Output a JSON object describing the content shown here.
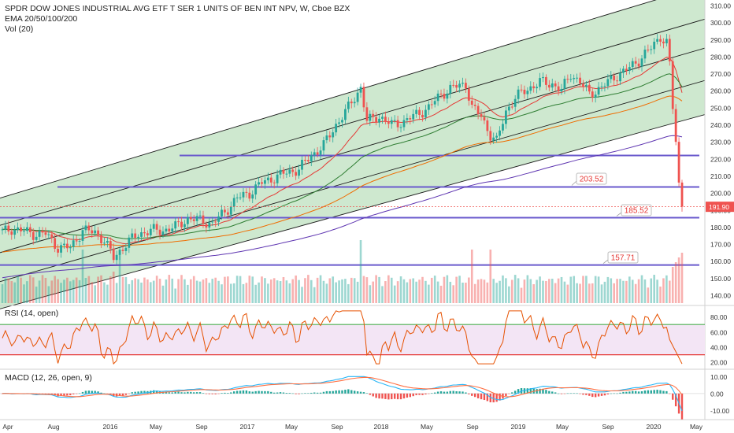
{
  "header": {
    "title": "SPDR DOW JONES INDUSTRIAL AVG ETF T SER 1 UNITS OF BEN INT NPV, W, Cboe BZX",
    "ema_label": "EMA 20/50/100/200",
    "vol_label": "Vol (20)"
  },
  "rsi_label": "RSI (14, open)",
  "macd_label": "MACD (12, 26, open, 9)",
  "colors": {
    "up": "#26a69a",
    "down": "#ef5350",
    "channel_fill": "#a5d6a7",
    "level_line": "#6a5acd",
    "ema20": "#e53935",
    "ema50": "#2e7d32",
    "ema100": "#ef6c00",
    "ema200": "#5e35b1",
    "rsi_fill": "#f3e5f5",
    "rsi_line": "#e65100",
    "macd_line": "#29b6f6",
    "signal_line": "#ff7043"
  },
  "chart_data": {
    "type": "candlestick",
    "interval": "weekly",
    "price_axis": {
      "ticks": [
        "310.00",
        "300.00",
        "290.00",
        "280.00",
        "270.00",
        "260.00",
        "250.00",
        "240.00",
        "230.00",
        "220.00",
        "210.00",
        "200.00",
        "190.00",
        "180.00",
        "170.00",
        "160.00",
        "150.00",
        "140.00"
      ],
      "range": [
        135,
        312
      ]
    },
    "x_labels": [
      "Apr",
      "Aug",
      "2016",
      "May",
      "Sep",
      "2017",
      "May",
      "Sep",
      "2018",
      "May",
      "Sep",
      "2019",
      "May",
      "Sep",
      "2020",
      "May"
    ],
    "close_series": [
      {
        "t": 0,
        "v": 177
      },
      {
        "t": 3,
        "v": 179
      },
      {
        "t": 6,
        "v": 178
      },
      {
        "t": 10,
        "v": 176
      },
      {
        "t": 14,
        "v": 176
      },
      {
        "t": 18,
        "v": 168
      },
      {
        "t": 22,
        "v": 168
      },
      {
        "t": 26,
        "v": 178
      },
      {
        "t": 30,
        "v": 177
      },
      {
        "t": 33,
        "v": 172
      },
      {
        "t": 36,
        "v": 162
      },
      {
        "t": 40,
        "v": 170
      },
      {
        "t": 44,
        "v": 176
      },
      {
        "t": 48,
        "v": 178
      },
      {
        "t": 52,
        "v": 178
      },
      {
        "t": 56,
        "v": 180
      },
      {
        "t": 60,
        "v": 185
      },
      {
        "t": 64,
        "v": 184
      },
      {
        "t": 68,
        "v": 182
      },
      {
        "t": 72,
        "v": 189
      },
      {
        "t": 76,
        "v": 197
      },
      {
        "t": 80,
        "v": 200
      },
      {
        "t": 84,
        "v": 206
      },
      {
        "t": 88,
        "v": 209
      },
      {
        "t": 92,
        "v": 212
      },
      {
        "t": 96,
        "v": 214
      },
      {
        "t": 100,
        "v": 222
      },
      {
        "t": 104,
        "v": 228
      },
      {
        "t": 108,
        "v": 240
      },
      {
        "t": 112,
        "v": 250
      },
      {
        "t": 116,
        "v": 262
      },
      {
        "t": 118,
        "v": 242
      },
      {
        "t": 122,
        "v": 245
      },
      {
        "t": 126,
        "v": 240
      },
      {
        "t": 130,
        "v": 242
      },
      {
        "t": 134,
        "v": 246
      },
      {
        "t": 138,
        "v": 250
      },
      {
        "t": 142,
        "v": 258
      },
      {
        "t": 146,
        "v": 262
      },
      {
        "t": 150,
        "v": 264
      },
      {
        "t": 152,
        "v": 250
      },
      {
        "t": 155,
        "v": 245
      },
      {
        "t": 158,
        "v": 234
      },
      {
        "t": 160,
        "v": 230
      },
      {
        "t": 163,
        "v": 248
      },
      {
        "t": 166,
        "v": 256
      },
      {
        "t": 170,
        "v": 261
      },
      {
        "t": 174,
        "v": 265
      },
      {
        "t": 178,
        "v": 264
      },
      {
        "t": 181,
        "v": 260
      },
      {
        "t": 184,
        "v": 270
      },
      {
        "t": 187,
        "v": 265
      },
      {
        "t": 190,
        "v": 258
      },
      {
        "t": 194,
        "v": 262
      },
      {
        "t": 198,
        "v": 268
      },
      {
        "t": 202,
        "v": 272
      },
      {
        "t": 206,
        "v": 278
      },
      {
        "t": 210,
        "v": 285
      },
      {
        "t": 213,
        "v": 292
      },
      {
        "t": 215,
        "v": 288
      },
      {
        "t": 216,
        "v": 275
      },
      {
        "t": 217,
        "v": 250
      },
      {
        "t": 218,
        "v": 230
      },
      {
        "t": 219,
        "v": 205
      },
      {
        "t": 220,
        "v": 192
      }
    ],
    "last_price": "191.90",
    "levels": [
      {
        "value": 222,
        "label": ""
      },
      {
        "value": 203.52,
        "label": "203.52"
      },
      {
        "value": 185.52,
        "label": "185.52"
      },
      {
        "value": 157.71,
        "label": "157.71"
      }
    ],
    "rsi_axis": {
      "ticks": [
        "80.00",
        "60.00",
        "40.00",
        "20.00"
      ],
      "range": [
        15,
        90
      ],
      "bands": [
        70,
        30
      ]
    },
    "macd_axis": {
      "ticks": [
        "10.00",
        "0.00",
        "-10.00"
      ],
      "range": [
        -14,
        12
      ]
    }
  }
}
